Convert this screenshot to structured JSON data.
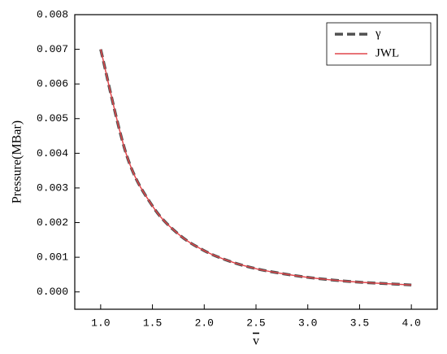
{
  "chart_data": {
    "type": "line",
    "x_label": "v",
    "y_label": "Pressure(MBar)",
    "x": [
      1.0,
      1.25,
      1.5,
      1.75,
      2.0,
      2.25,
      2.5,
      2.75,
      3.0,
      3.25,
      3.5,
      3.75,
      4.0
    ],
    "series": [
      {
        "name": "γ",
        "color": "#505050",
        "dashed": true,
        "values": [
          0.007,
          0.00395,
          0.00248,
          0.00167,
          0.00119,
          0.00088,
          0.00067,
          0.00053,
          0.00042,
          0.00034,
          0.00028,
          0.00024,
          0.0002
        ]
      },
      {
        "name": "JWL",
        "color": "#e0474c",
        "dashed": false,
        "values": [
          0.007,
          0.00395,
          0.00248,
          0.00167,
          0.00119,
          0.00088,
          0.00067,
          0.00053,
          0.00042,
          0.00034,
          0.00028,
          0.00024,
          0.0002
        ]
      }
    ],
    "xlim": [
      0.75,
      4.25
    ],
    "xticks": [
      {
        "value": 1,
        "label": "1.0"
      },
      {
        "value": 1.5,
        "label": "1.5"
      },
      {
        "value": 2,
        "label": "2.0"
      },
      {
        "value": 2.5,
        "label": "2.5"
      },
      {
        "value": 3,
        "label": "3.0"
      },
      {
        "value": 3.5,
        "label": "3.5"
      },
      {
        "value": 4,
        "label": "4.0"
      }
    ],
    "ylim": [
      -0.0005,
      0.008
    ],
    "yticks": [
      {
        "value": 0,
        "label": "0.000"
      },
      {
        "value": 0.001,
        "label": "0.001"
      },
      {
        "value": 0.002,
        "label": "0.002"
      },
      {
        "value": 0.003,
        "label": "0.003"
      },
      {
        "value": 0.004,
        "label": "0.004"
      },
      {
        "value": 0.005,
        "label": "0.005"
      },
      {
        "value": 0.006,
        "label": "0.006"
      },
      {
        "value": 0.007,
        "label": "0.007"
      },
      {
        "value": 0.008,
        "label": "0.008"
      }
    ],
    "legend": "upper right"
  }
}
